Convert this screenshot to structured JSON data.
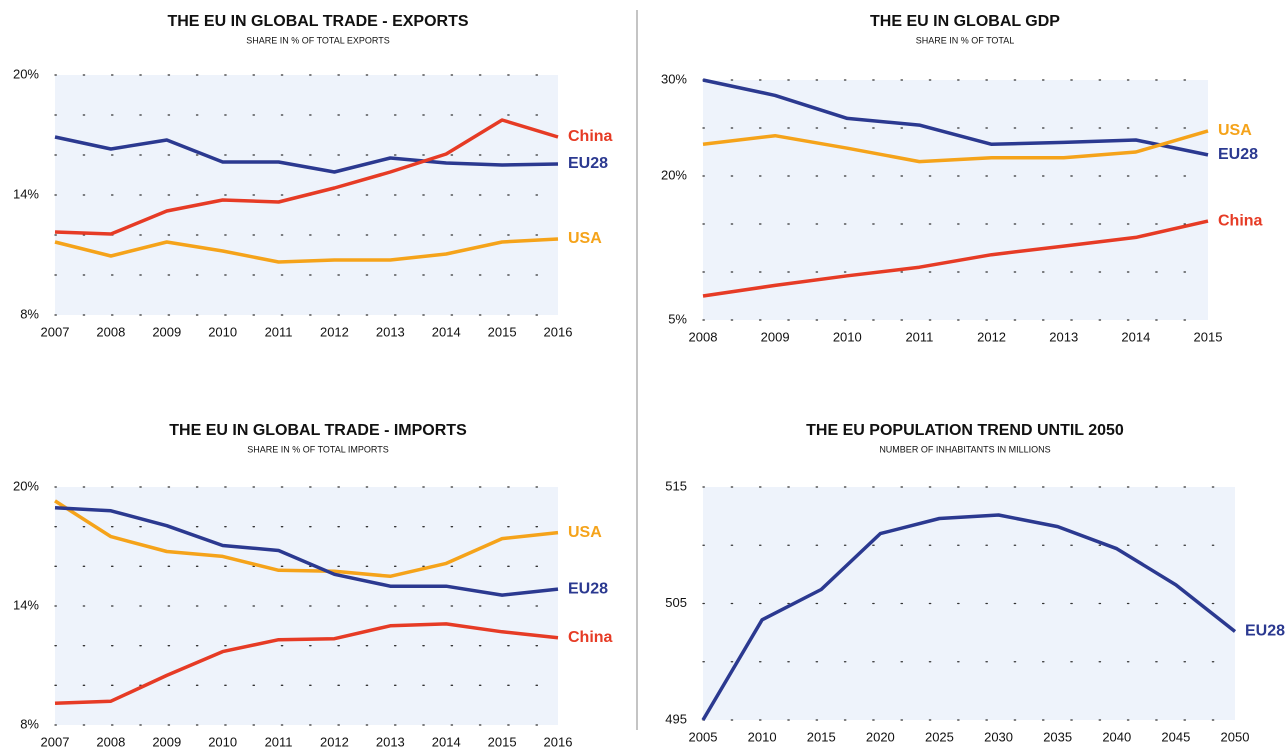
{
  "chart_data": [
    {
      "type": "line",
      "title": "THE EU IN GLOBAL TRADE - EXPORTS",
      "subtitle": "SHARE IN % OF TOTAL EXPORTS",
      "categories": [
        "2007",
        "2008",
        "2009",
        "2010",
        "2011",
        "2012",
        "2013",
        "2014",
        "2015",
        "2016"
      ],
      "ylim": [
        8,
        20
      ],
      "yticks": [
        {
          "value": 8,
          "label": "8%"
        },
        {
          "value": 14,
          "label": "14%"
        },
        {
          "value": 20,
          "label": "20%"
        }
      ],
      "yminor": [
        10,
        12,
        16,
        18
      ],
      "grid": true,
      "series": [
        {
          "name": "EU28",
          "color": "#2b3990",
          "values": [
            16.9,
            16.3,
            16.75,
            15.65,
            15.65,
            15.15,
            15.85,
            15.6,
            15.5,
            15.55
          ]
        },
        {
          "name": "China",
          "color": "#e63b25",
          "values": [
            12.15,
            12.05,
            13.2,
            13.75,
            13.65,
            14.35,
            15.15,
            16.05,
            17.75,
            16.9
          ]
        },
        {
          "name": "USA",
          "color": "#f5a31a",
          "values": [
            11.65,
            10.95,
            11.65,
            11.2,
            10.65,
            10.75,
            10.75,
            11.05,
            11.65,
            11.8
          ]
        }
      ]
    },
    {
      "type": "line",
      "title": "THE EU IN GLOBAL GDP",
      "subtitle": "SHARE IN % OF TOTAL",
      "categories": [
        "2008",
        "2009",
        "2010",
        "2011",
        "2012",
        "2013",
        "2014",
        "2015"
      ],
      "ylim": [
        5,
        30
      ],
      "yticks": [
        {
          "value": 5,
          "label": "5%"
        },
        {
          "value": 20,
          "label": "20%"
        },
        {
          "value": 30,
          "label": "30%"
        }
      ],
      "yminor": [
        10,
        15,
        25
      ],
      "grid": true,
      "series": [
        {
          "name": "EU28",
          "color": "#2b3990",
          "values": [
            30,
            28.4,
            26,
            25.3,
            23.3,
            23.5,
            23.75,
            22.2
          ]
        },
        {
          "name": "USA",
          "color": "#f5a31a",
          "values": [
            23.3,
            24.2,
            22.9,
            21.5,
            21.9,
            21.9,
            22.5,
            24.7
          ]
        },
        {
          "name": "China",
          "color": "#e63b25",
          "values": [
            7.5,
            8.6,
            9.6,
            10.5,
            11.8,
            12.7,
            13.6,
            15.3
          ]
        }
      ]
    },
    {
      "type": "line",
      "title": "THE EU IN GLOBAL TRADE - IMPORTS",
      "subtitle": "SHARE IN % OF TOTAL IMPORTS",
      "categories": [
        "2007",
        "2008",
        "2009",
        "2010",
        "2011",
        "2012",
        "2013",
        "2014",
        "2015",
        "2016"
      ],
      "ylim": [
        8,
        20
      ],
      "yticks": [
        {
          "value": 8,
          "label": "8%"
        },
        {
          "value": 14,
          "label": "14%"
        },
        {
          "value": 20,
          "label": "20%"
        }
      ],
      "yminor": [
        10,
        12,
        16,
        18
      ],
      "grid": true,
      "series": [
        {
          "name": "USA",
          "color": "#f5a31a",
          "values": [
            19.3,
            17.5,
            16.75,
            16.5,
            15.8,
            15.75,
            15.5,
            16.15,
            17.4,
            17.7
          ]
        },
        {
          "name": "EU28",
          "color": "#2b3990",
          "values": [
            18.95,
            18.8,
            18.05,
            17.05,
            16.8,
            15.6,
            15.0,
            15.0,
            14.55,
            14.85
          ]
        },
        {
          "name": "China",
          "color": "#e63b25",
          "values": [
            9.1,
            9.2,
            10.5,
            11.7,
            12.3,
            12.35,
            13.0,
            13.1,
            12.7,
            12.4
          ]
        }
      ]
    },
    {
      "type": "line",
      "title": "THE EU POPULATION TREND UNTIL 2050",
      "subtitle": "NUMBER OF INHABITANTS IN MILLIONS",
      "categories": [
        "2005",
        "2010",
        "2015",
        "2020",
        "2025",
        "2030",
        "2035",
        "2040",
        "2045",
        "2050"
      ],
      "ylim": [
        495,
        515
      ],
      "yticks": [
        495,
        505,
        515
      ],
      "yminor": [
        500,
        510
      ],
      "grid": true,
      "series": [
        {
          "name": "EU28",
          "color": "#2b3990",
          "values": [
            495,
            503.6,
            506.2,
            511,
            512.3,
            512.6,
            511.6,
            509.7,
            506.6,
            502.6
          ]
        }
      ]
    }
  ]
}
